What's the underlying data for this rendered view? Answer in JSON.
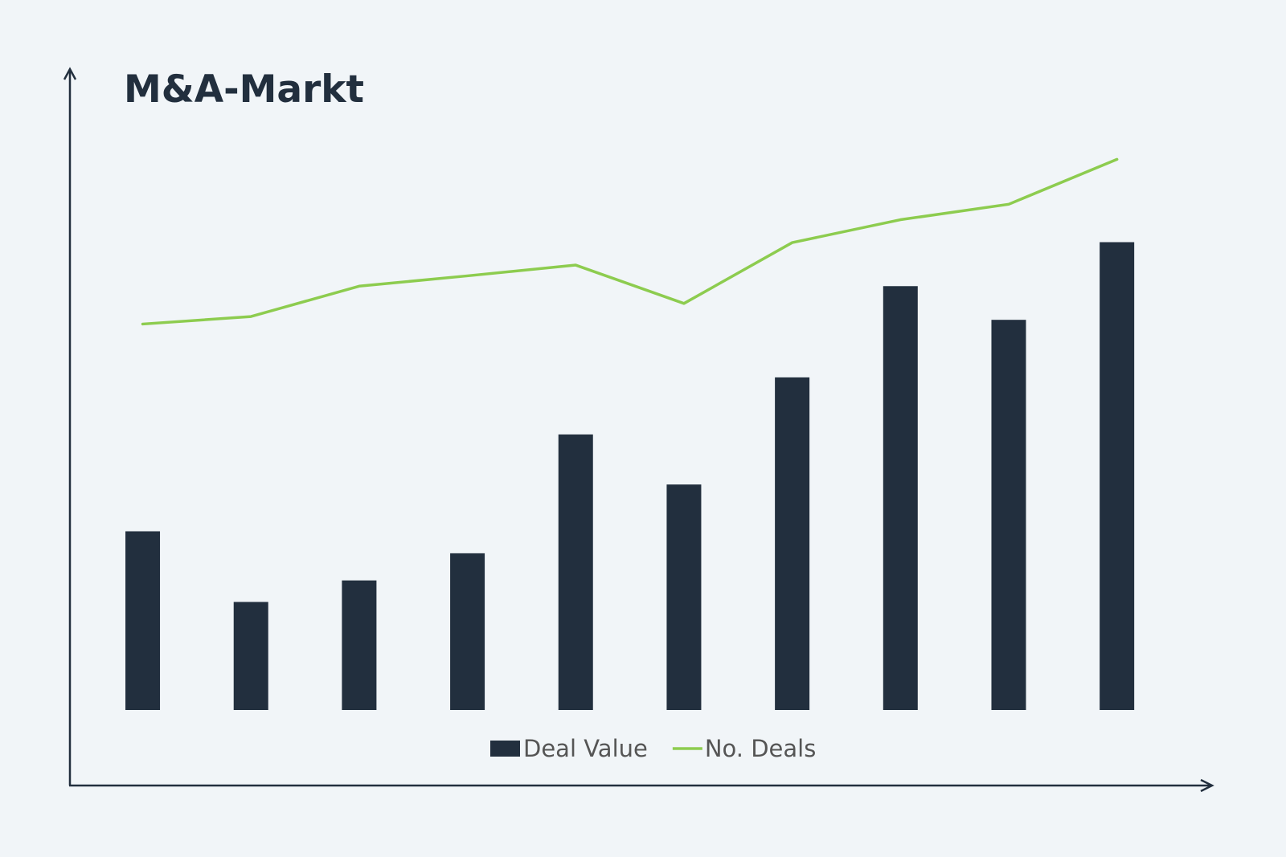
{
  "chart_data": {
    "type": "bar",
    "title": "M&A-Markt",
    "categories": [
      null,
      null,
      null,
      null,
      null,
      null,
      null,
      null,
      null,
      null
    ],
    "series": [
      {
        "name": "Deal Value",
        "type": "bar",
        "color": "#222f3e",
        "values": [
          38.2,
          23.1,
          27.7,
          33.5,
          58.9,
          48.2,
          71.1,
          90.6,
          83.4,
          100
        ]
      },
      {
        "name": "No. Deals",
        "type": "line",
        "color": "#8dcc4f",
        "values": [
          82.5,
          84.1,
          90.6,
          92.8,
          95.1,
          86.9,
          99.9,
          104.8,
          108.1,
          117.7
        ]
      }
    ],
    "ylim": [
      0,
      120
    ],
    "grid": false,
    "legend": "bottom"
  }
}
